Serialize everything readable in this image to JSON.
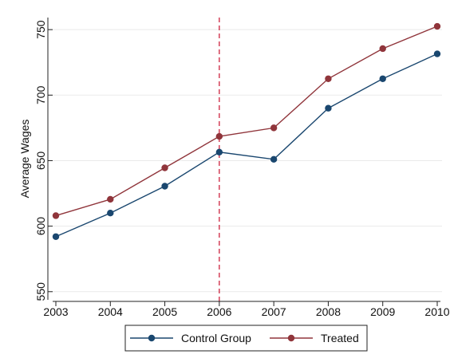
{
  "chart_data": {
    "type": "line",
    "title": "",
    "xlabel": "",
    "ylabel": "Average Wages",
    "x": [
      2003,
      2004,
      2005,
      2006,
      2007,
      2008,
      2009,
      2010
    ],
    "x_tick_labels": [
      "2003",
      "2004",
      "2005",
      "2006",
      "2007",
      "2008",
      "2009",
      "2010"
    ],
    "xlim": [
      2003,
      2010
    ],
    "ylim": [
      545,
      758
    ],
    "y_ticks": [
      550,
      600,
      650,
      700,
      750
    ],
    "y_tick_labels": [
      "550",
      "600",
      "650",
      "700",
      "750"
    ],
    "grid": "horizontal",
    "legend_position": "bottom",
    "reference_line": {
      "x": 2006,
      "color": "#c8102e",
      "style": "dashed"
    },
    "series": [
      {
        "name": "Control Group",
        "color": "#1a476f",
        "values": [
          592,
          610,
          630.5,
          656.5,
          651,
          690,
          712.5,
          731.5
        ]
      },
      {
        "name": "Treated",
        "color": "#90353b",
        "values": [
          608,
          620.5,
          644.5,
          668.5,
          675,
          712.5,
          735.5,
          752.5
        ]
      }
    ]
  }
}
